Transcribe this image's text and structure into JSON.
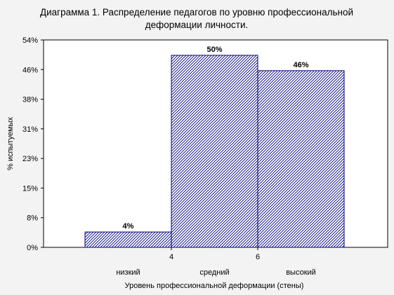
{
  "chart_data": {
    "type": "bar",
    "title": "Диаграмма 1. Распределение педагогов по уровню профессиональной",
    "subtitle": "деформации личности.",
    "xlabel": "Уровень профессиональной деформации (стены)",
    "ylabel": "% испытуемых",
    "categories": [
      "низкий",
      "средний",
      "высокий"
    ],
    "values": [
      4,
      50,
      46
    ],
    "value_labels": [
      "4%",
      "50%",
      "46%"
    ],
    "x_ticks": [
      "4",
      "6"
    ],
    "y_ticks": [
      "0%",
      "8%",
      "15%",
      "23%",
      "31%",
      "38%",
      "46%",
      "54%"
    ],
    "ylim": [
      0,
      54
    ],
    "grid": false,
    "bar_color": "#00007f",
    "plot_background": "#ffffff",
    "page_background": "#f3f3f3"
  }
}
